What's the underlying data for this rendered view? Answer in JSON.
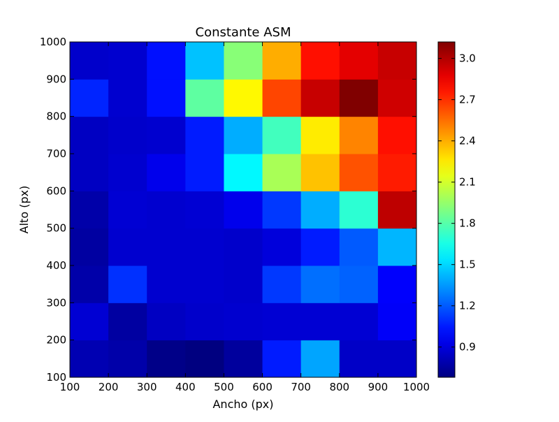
{
  "chart_data": {
    "type": "heatmap",
    "title": "Constante ASM",
    "xlabel": "Ancho (px)",
    "ylabel": "Alto (px)",
    "x_ticks": [
      "100",
      "200",
      "300",
      "400",
      "500",
      "600",
      "700",
      "800",
      "900",
      "1000"
    ],
    "y_ticks": [
      "100",
      "200",
      "300",
      "400",
      "500",
      "600",
      "700",
      "800",
      "900",
      "1000"
    ],
    "x_edges": [
      100,
      200,
      300,
      400,
      500,
      600,
      700,
      800,
      900,
      1000
    ],
    "y_edges": [
      100,
      200,
      300,
      400,
      500,
      600,
      700,
      800,
      900,
      1000
    ],
    "xlim": [
      100,
      1000
    ],
    "ylim": [
      100,
      1000
    ],
    "colorbar": {
      "colormap": "jet",
      "vmin": 0.68,
      "vmax": 3.12,
      "ticks": [
        "0.9",
        "1.2",
        "1.5",
        "1.8",
        "2.1",
        "2.4",
        "2.7",
        "3.0"
      ]
    },
    "grid": false,
    "values_rows_bottom_to_top": [
      [
        0.8,
        0.78,
        0.7,
        0.68,
        0.75,
        1.05,
        1.38,
        0.85,
        0.85
      ],
      [
        0.88,
        0.76,
        0.84,
        0.86,
        0.87,
        0.88,
        0.88,
        0.88,
        0.97
      ],
      [
        0.78,
        1.1,
        0.87,
        0.87,
        0.86,
        1.12,
        1.25,
        1.22,
        0.98
      ],
      [
        0.76,
        0.87,
        0.87,
        0.87,
        0.86,
        0.9,
        1.05,
        1.2,
        1.42
      ],
      [
        0.78,
        0.88,
        0.87,
        0.88,
        0.94,
        1.12,
        1.4,
        1.7,
        2.97
      ],
      [
        0.84,
        0.87,
        0.94,
        1.05,
        1.58,
        2.0,
        2.35,
        2.62,
        2.75
      ],
      [
        0.84,
        0.86,
        0.87,
        1.05,
        1.4,
        1.75,
        2.25,
        2.5,
        2.78
      ],
      [
        1.07,
        0.87,
        1.02,
        1.82,
        2.22,
        2.65,
        2.95,
        3.12,
        2.93
      ],
      [
        0.86,
        0.87,
        1.02,
        1.45,
        1.92,
        2.4,
        2.78,
        2.88,
        2.95
      ]
    ]
  }
}
